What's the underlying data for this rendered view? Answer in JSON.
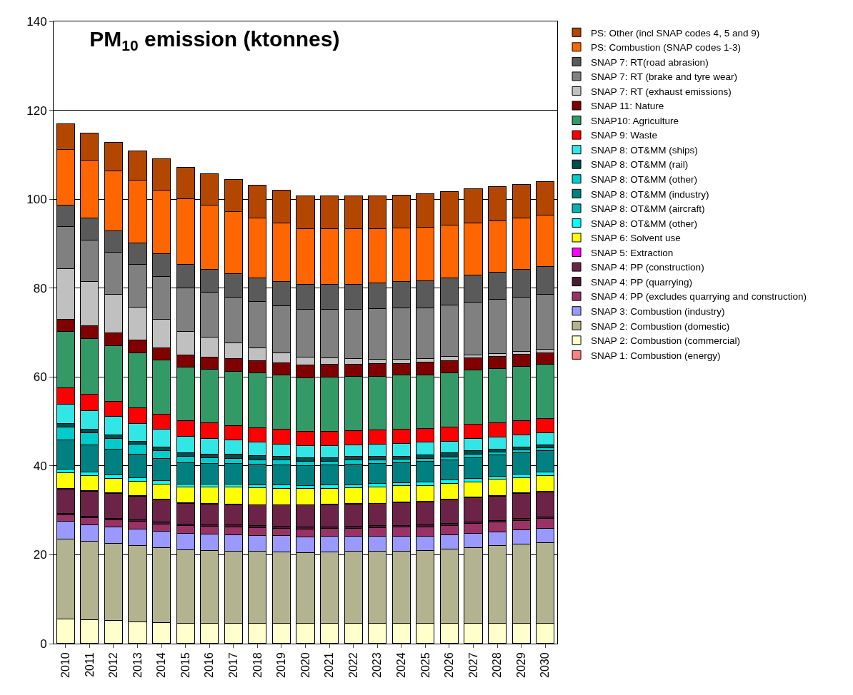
{
  "chart_data": {
    "type": "bar",
    "stacked": true,
    "title": "PM$_{10}$ emission (ktonnes)",
    "categories": [
      "2010",
      "2011",
      "2012",
      "2013",
      "2014",
      "2015",
      "2016",
      "2017",
      "2018",
      "2019",
      "2020",
      "2021",
      "2022",
      "2023",
      "2024",
      "2025",
      "2026",
      "2027",
      "2028",
      "2029",
      "2030"
    ],
    "ylim": [
      0,
      140
    ],
    "yticks": [
      0,
      20,
      40,
      60,
      80,
      100,
      120,
      140
    ],
    "grid": "y",
    "legend": "right",
    "series": [
      {
        "name": "SNAP 1: Combustion (energy)",
        "color": "#ff8080",
        "values": [
          0.1,
          0.1,
          0.1,
          0.1,
          0.1,
          0.1,
          0.1,
          0.1,
          0.1,
          0.1,
          0.1,
          0.1,
          0.1,
          0.1,
          0.1,
          0.1,
          0.1,
          0.1,
          0.1,
          0.1,
          0.1
        ]
      },
      {
        "name": "SNAP 2: Combustion (commercial)",
        "color": "#ffffcc",
        "values": [
          5.5,
          5.3,
          5.1,
          4.8,
          4.7,
          4.5,
          4.5,
          4.5,
          4.5,
          4.5,
          4.5,
          4.5,
          4.5,
          4.5,
          4.5,
          4.5,
          4.5,
          4.5,
          4.5,
          4.5,
          4.5
        ]
      },
      {
        "name": "SNAP 2: Combustion (domestic)",
        "color": "#b3b38f",
        "values": [
          18.0,
          17.7,
          17.3,
          17.1,
          16.8,
          16.5,
          16.3,
          16.2,
          16.2,
          16.0,
          15.9,
          16.0,
          16.2,
          16.2,
          16.2,
          16.3,
          16.7,
          17.0,
          17.4,
          17.8,
          18.1
        ]
      },
      {
        "name": "SNAP 3: Combustion (industry)",
        "color": "#9999ff",
        "values": [
          3.9,
          3.7,
          3.8,
          3.8,
          3.7,
          3.7,
          3.8,
          3.7,
          3.6,
          3.7,
          3.5,
          3.5,
          3.3,
          3.4,
          3.3,
          3.3,
          3.2,
          3.2,
          3.2,
          3.2,
          3.2
        ]
      },
      {
        "name": "SNAP 4: PP (excludes quarrying and construction)",
        "color": "#993366",
        "values": [
          1.4,
          1.5,
          1.5,
          1.7,
          1.6,
          1.7,
          1.7,
          1.8,
          1.7,
          1.7,
          1.8,
          1.8,
          1.9,
          1.9,
          2.1,
          2.1,
          2.1,
          2.2,
          2.1,
          2.1,
          2.2
        ]
      },
      {
        "name": "SNAP 4: PP (quarrying)",
        "color": "#4d1a33",
        "values": [
          0.4,
          0.4,
          0.4,
          0.4,
          0.4,
          0.4,
          0.4,
          0.4,
          0.4,
          0.4,
          0.4,
          0.4,
          0.4,
          0.4,
          0.4,
          0.4,
          0.4,
          0.4,
          0.4,
          0.4,
          0.4
        ]
      },
      {
        "name": "SNAP 4: PP (construction)",
        "color": "#6b2448",
        "values": [
          5.5,
          5.6,
          5.6,
          5.3,
          5.1,
          4.7,
          4.6,
          4.6,
          4.7,
          4.8,
          5.0,
          5.0,
          5.0,
          5.0,
          5.1,
          5.2,
          5.4,
          5.5,
          5.5,
          5.7,
          5.6
        ]
      },
      {
        "name": "SNAP 5: Extraction",
        "color": "#ff00ff",
        "values": [
          0.1,
          0.1,
          0.1,
          0.1,
          0.1,
          0.1,
          0.1,
          0.1,
          0.1,
          0.1,
          0.1,
          0.1,
          0.1,
          0.1,
          0.1,
          0.1,
          0.1,
          0.1,
          0.1,
          0.1,
          0.1
        ]
      },
      {
        "name": "SNAP 6: Solvent use",
        "color": "#ffff00",
        "values": [
          3.5,
          3.4,
          3.2,
          3.2,
          3.4,
          3.6,
          3.7,
          3.8,
          3.8,
          3.7,
          3.6,
          3.6,
          3.6,
          3.7,
          3.7,
          3.6,
          3.6,
          3.4,
          3.7,
          3.5,
          3.6
        ]
      },
      {
        "name": "SNAP 8: OT&MM (other)",
        "color": "#00ffff",
        "values": [
          0.8,
          0.8,
          0.9,
          0.8,
          0.8,
          0.6,
          0.7,
          0.7,
          0.7,
          0.7,
          0.7,
          0.7,
          0.7,
          0.7,
          0.7,
          0.8,
          0.7,
          0.8,
          0.7,
          0.8,
          0.8
        ]
      },
      {
        "name": "SNAP 8: OT&MM (aircraft)",
        "color": "#00b3b3",
        "values": [
          null,
          null,
          null,
          null,
          null,
          null,
          null,
          null,
          null,
          null,
          null,
          null,
          null,
          null,
          null,
          null,
          null,
          null,
          null,
          null,
          null
        ]
      },
      {
        "name": "SNAP 8: OT&MM (industry)",
        "color": "#008080",
        "values": [
          6.6,
          6.1,
          5.8,
          5.4,
          4.9,
          4.8,
          4.7,
          4.6,
          4.5,
          4.5,
          4.4,
          4.5,
          4.5,
          4.6,
          4.5,
          4.6,
          4.6,
          4.7,
          4.8,
          4.7,
          4.8
        ]
      },
      {
        "name": "SNAP 8: OT&MM (other)",
        "color": "#00cccc",
        "values": [
          3.0,
          2.7,
          2.3,
          2.1,
          1.8,
          1.5,
          1.2,
          1.1,
          1.1,
          1.1,
          1.1,
          0.9,
          1.0,
          0.8,
          0.8,
          0.6,
          0.6,
          0.7,
          0.6,
          0.7,
          0.6
        ]
      },
      {
        "name": "SNAP 8: OT&MM (rail)",
        "color": "#004d4d",
        "values": [
          0.8,
          0.8,
          0.8,
          0.7,
          0.9,
          0.8,
          0.9,
          1.0,
          0.9,
          0.8,
          0.7,
          0.8,
          0.8,
          0.8,
          0.7,
          0.8,
          0.9,
          0.8,
          0.7,
          0.6,
          0.7
        ]
      },
      {
        "name": "SNAP 8: OT&MM (ships)",
        "color": "#33e6e6",
        "values": [
          4.3,
          4.3,
          4.2,
          4.1,
          3.9,
          3.6,
          3.5,
          3.2,
          3.1,
          2.7,
          2.7,
          2.6,
          2.6,
          2.7,
          2.8,
          2.9,
          2.6,
          2.7,
          2.6,
          2.8,
          2.8
        ]
      },
      {
        "name": "SNAP 9: Waste",
        "color": "#ff0000",
        "values": [
          3.7,
          3.6,
          3.4,
          3.5,
          3.4,
          3.5,
          3.5,
          3.3,
          3.2,
          3.4,
          3.2,
          3.3,
          3.2,
          3.2,
          3.2,
          3.1,
          3.2,
          3.2,
          3.3,
          3.1,
          3.1
        ]
      },
      {
        "name": "SNAP10: Agriculture",
        "color": "#339966",
        "values": [
          12.7,
          12.6,
          12.5,
          12.3,
          12.2,
          12.1,
          12.0,
          12.2,
          12.3,
          12.2,
          12.1,
          12.2,
          12.2,
          12.1,
          12.2,
          12.1,
          12.2,
          12.2,
          12.2,
          12.2,
          12.2
        ]
      },
      {
        "name": "SNAP 11: Nature",
        "color": "#800000",
        "values": [
          2.7,
          2.8,
          2.9,
          2.9,
          2.8,
          2.8,
          2.8,
          2.8,
          2.7,
          2.7,
          2.9,
          2.8,
          2.8,
          2.8,
          2.6,
          2.9,
          2.8,
          2.8,
          2.7,
          2.8,
          2.6
        ]
      },
      {
        "name": "SNAP 7: RT (exhaust emissions)",
        "color": "#c0c0c0",
        "values": [
          11.4,
          9.9,
          8.7,
          7.4,
          6.3,
          5.3,
          4.4,
          3.5,
          3.0,
          2.4,
          1.8,
          1.5,
          1.2,
          1.0,
          1.0,
          0.7,
          0.9,
          0.7,
          0.7,
          0.7,
          0.9
        ]
      },
      {
        "name": "SNAP 7: RT (brake and tyre wear)",
        "color": "#808080",
        "values": [
          9.4,
          9.4,
          9.5,
          9.6,
          9.7,
          9.8,
          10.1,
          10.3,
          10.4,
          10.5,
          10.7,
          10.9,
          11.1,
          11.3,
          11.5,
          11.5,
          11.6,
          11.8,
          12.1,
          12.1,
          12.3
        ]
      },
      {
        "name": "SNAP 7: RT(road abrasion)",
        "color": "#5a5a5a",
        "values": [
          4.8,
          4.9,
          4.8,
          4.9,
          5.1,
          5.2,
          5.2,
          5.4,
          5.3,
          5.5,
          5.6,
          5.6,
          5.7,
          5.8,
          5.9,
          6.1,
          6.1,
          6.1,
          6.1,
          6.3,
          6.3
        ]
      },
      {
        "name": "PS: Combustion (SNAP codes 1-3)",
        "color": "#ff6600",
        "values": [
          12.6,
          13.1,
          13.5,
          14.0,
          14.4,
          14.8,
          14.4,
          13.9,
          13.5,
          13.1,
          12.6,
          12.5,
          12.4,
          12.3,
          12.1,
          12.0,
          11.9,
          11.8,
          11.7,
          11.6,
          11.5
        ]
      },
      {
        "name": "PS: Other (incl SNAP codes 4, 5 and 9)",
        "color": "#b34700",
        "values": [
          5.8,
          6.0,
          6.4,
          6.6,
          7.0,
          7.1,
          7.2,
          7.2,
          7.3,
          7.4,
          7.4,
          7.5,
          7.5,
          7.4,
          7.4,
          7.5,
          7.5,
          7.6,
          7.6,
          7.5,
          7.6
        ]
      }
    ]
  }
}
